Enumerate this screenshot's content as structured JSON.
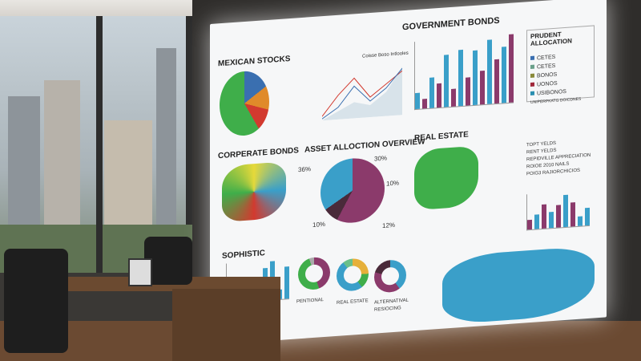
{
  "scene": {
    "description_labels": [],
    "display": {
      "mexican_stocks": {
        "title": "MEXICAN STOCKS"
      },
      "line_chart": {
        "legend": "Coisse Boso Intlooles"
      },
      "government_bonds": {
        "title": "GOVERNMENT BONDS"
      },
      "prudent_allocation": {
        "title": "PRUDENT ALLOCATION",
        "items": [
          "CETES",
          "CETES",
          "BONOS",
          "UONOS",
          "USIBONOS"
        ],
        "footer": "UNIPERPKATG DOICDNES"
      },
      "corporate_bonds": {
        "title": "CORPERATE BONDS"
      },
      "asset_allocation": {
        "title": "ASSET ALLOCTION OVERVIEW",
        "labels": [
          "36%",
          "30%",
          "10%",
          "10%",
          "12%"
        ]
      },
      "real_estate": {
        "title": "REAL ESTATE",
        "legend": [
          "TOPT YELDS",
          "RENT YELDS",
          "REPIDVILLE APPRECIATION",
          "ROIOE 2010 NAILS",
          "POIG3 RAJIORCHICIOS"
        ]
      },
      "sophistic": {
        "title": "SOPHISTIC"
      },
      "donuts": {
        "labels": [
          "PENTIONAL",
          "REAL ESTATE",
          "ALTERNATIVAL",
          "RESIOCING"
        ]
      }
    },
    "colors": {
      "blue": "#3a9fc9",
      "purple": "#8b3a6b",
      "green": "#3fae4a",
      "orange": "#e08a2a",
      "red": "#d23a2f"
    }
  }
}
